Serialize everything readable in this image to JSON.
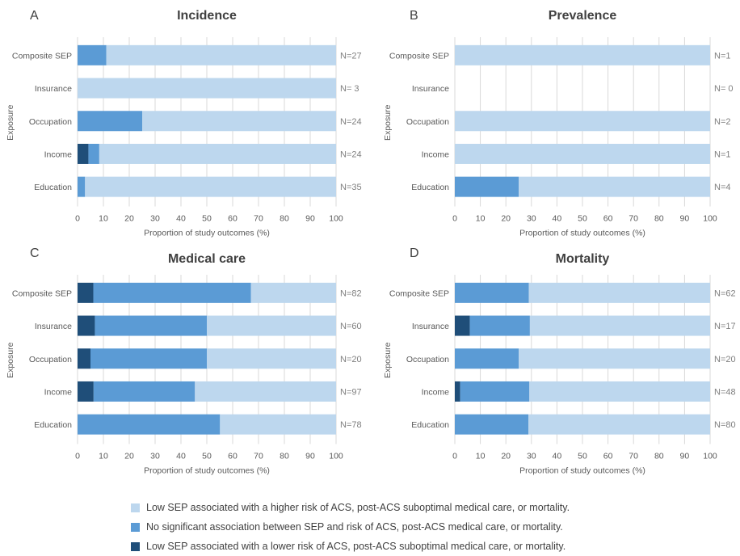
{
  "colors": {
    "higher_risk": "#bdd7ee",
    "no_association": "#5b9bd5",
    "lower_risk": "#1f4e79",
    "text": "#595959",
    "grid": "#d9d9d9"
  },
  "legend": [
    {
      "key": "higher_risk",
      "label": "Low SEP associated with a higher risk of ACS, post-ACS suboptimal medical care, or mortality."
    },
    {
      "key": "no_association",
      "label": "No significant association between SEP and risk of ACS, post-ACS medical care, or mortality."
    },
    {
      "key": "lower_risk",
      "label": "Low SEP associated with a lower risk of ACS, post-ACS suboptimal medical care, or mortality."
    }
  ],
  "chart_data": [
    {
      "type": "bar",
      "orientation": "horizontal",
      "stacked": true,
      "panel": "A",
      "title": "Incidence",
      "xlabel": "Proportion of study outcomes (%)",
      "ylabel": "Exposure",
      "xlim": [
        0,
        100
      ],
      "xticks": [
        "0",
        "10",
        "20",
        "30",
        "40",
        "50",
        "60",
        "70",
        "80",
        "90",
        "100"
      ],
      "grid": true,
      "categories": [
        "Composite SEP",
        "Insurance",
        "Occupation",
        "Income",
        "Education"
      ],
      "n_labels": [
        "N=27",
        "N=  3",
        "N=24",
        "N=24",
        "N=35"
      ],
      "series": [
        {
          "key": "lower_risk",
          "values": [
            0,
            0,
            0,
            4.2,
            0
          ]
        },
        {
          "key": "no_association",
          "values": [
            11.1,
            0,
            25.0,
            4.2,
            2.9
          ]
        },
        {
          "key": "higher_risk",
          "values": [
            88.9,
            100,
            75.0,
            91.6,
            97.1
          ]
        }
      ]
    },
    {
      "type": "bar",
      "orientation": "horizontal",
      "stacked": true,
      "panel": "B",
      "title": "Prevalence",
      "xlabel": "Proportion of study outcomes (%)",
      "ylabel": "Exposure",
      "xlim": [
        0,
        100
      ],
      "xticks": [
        "0",
        "10",
        "20",
        "30",
        "40",
        "50",
        "60",
        "70",
        "80",
        "90",
        "100"
      ],
      "grid": true,
      "categories": [
        "Composite SEP",
        "Insurance",
        "Occupation",
        "Income",
        "Education"
      ],
      "n_labels": [
        "N=1",
        "N=  0",
        "N=2",
        "N=1",
        "N=4"
      ],
      "series": [
        {
          "key": "lower_risk",
          "values": [
            0,
            0,
            0,
            0,
            0
          ]
        },
        {
          "key": "no_association",
          "values": [
            0,
            0,
            0,
            0,
            25.0
          ]
        },
        {
          "key": "higher_risk",
          "values": [
            100,
            0,
            100,
            100,
            75.0
          ]
        }
      ]
    },
    {
      "type": "bar",
      "orientation": "horizontal",
      "stacked": true,
      "panel": "C",
      "title": "Medical care",
      "xlabel": "Proportion of study outcomes (%)",
      "ylabel": "Exposure",
      "xlim": [
        0,
        100
      ],
      "xticks": [
        "0",
        "10",
        "20",
        "30",
        "40",
        "50",
        "60",
        "70",
        "80",
        "90",
        "100"
      ],
      "grid": true,
      "categories": [
        "Composite SEP",
        "Insurance",
        "Occupation",
        "Income",
        "Education"
      ],
      "n_labels": [
        "N=82",
        "N=60",
        "N=20",
        "N=97",
        "N=78"
      ],
      "series": [
        {
          "key": "lower_risk",
          "values": [
            6.1,
            6.7,
            5.0,
            6.2,
            0
          ]
        },
        {
          "key": "no_association",
          "values": [
            61.0,
            43.3,
            45.0,
            39.2,
            55.1
          ]
        },
        {
          "key": "higher_risk",
          "values": [
            32.9,
            50.0,
            50.0,
            54.6,
            44.9
          ]
        }
      ]
    },
    {
      "type": "bar",
      "orientation": "horizontal",
      "stacked": true,
      "panel": "D",
      "title": "Mortality",
      "xlabel": "Proportion of study outcomes (%)",
      "ylabel": "Exposure",
      "xlim": [
        0,
        100
      ],
      "xticks": [
        "0",
        "10",
        "20",
        "30",
        "40",
        "50",
        "60",
        "70",
        "80",
        "90",
        "100"
      ],
      "grid": true,
      "categories": [
        "Composite SEP",
        "Insurance",
        "Occupation",
        "Income",
        "Education"
      ],
      "n_labels": [
        "N=62",
        "N=17",
        "N=20",
        "N=48",
        "N=80"
      ],
      "series": [
        {
          "key": "lower_risk",
          "values": [
            0,
            5.9,
            0,
            2.1,
            0
          ]
        },
        {
          "key": "no_association",
          "values": [
            29.0,
            23.5,
            25.0,
            27.1,
            28.8
          ]
        },
        {
          "key": "higher_risk",
          "values": [
            71.0,
            70.6,
            75.0,
            70.8,
            71.2
          ]
        }
      ]
    }
  ]
}
